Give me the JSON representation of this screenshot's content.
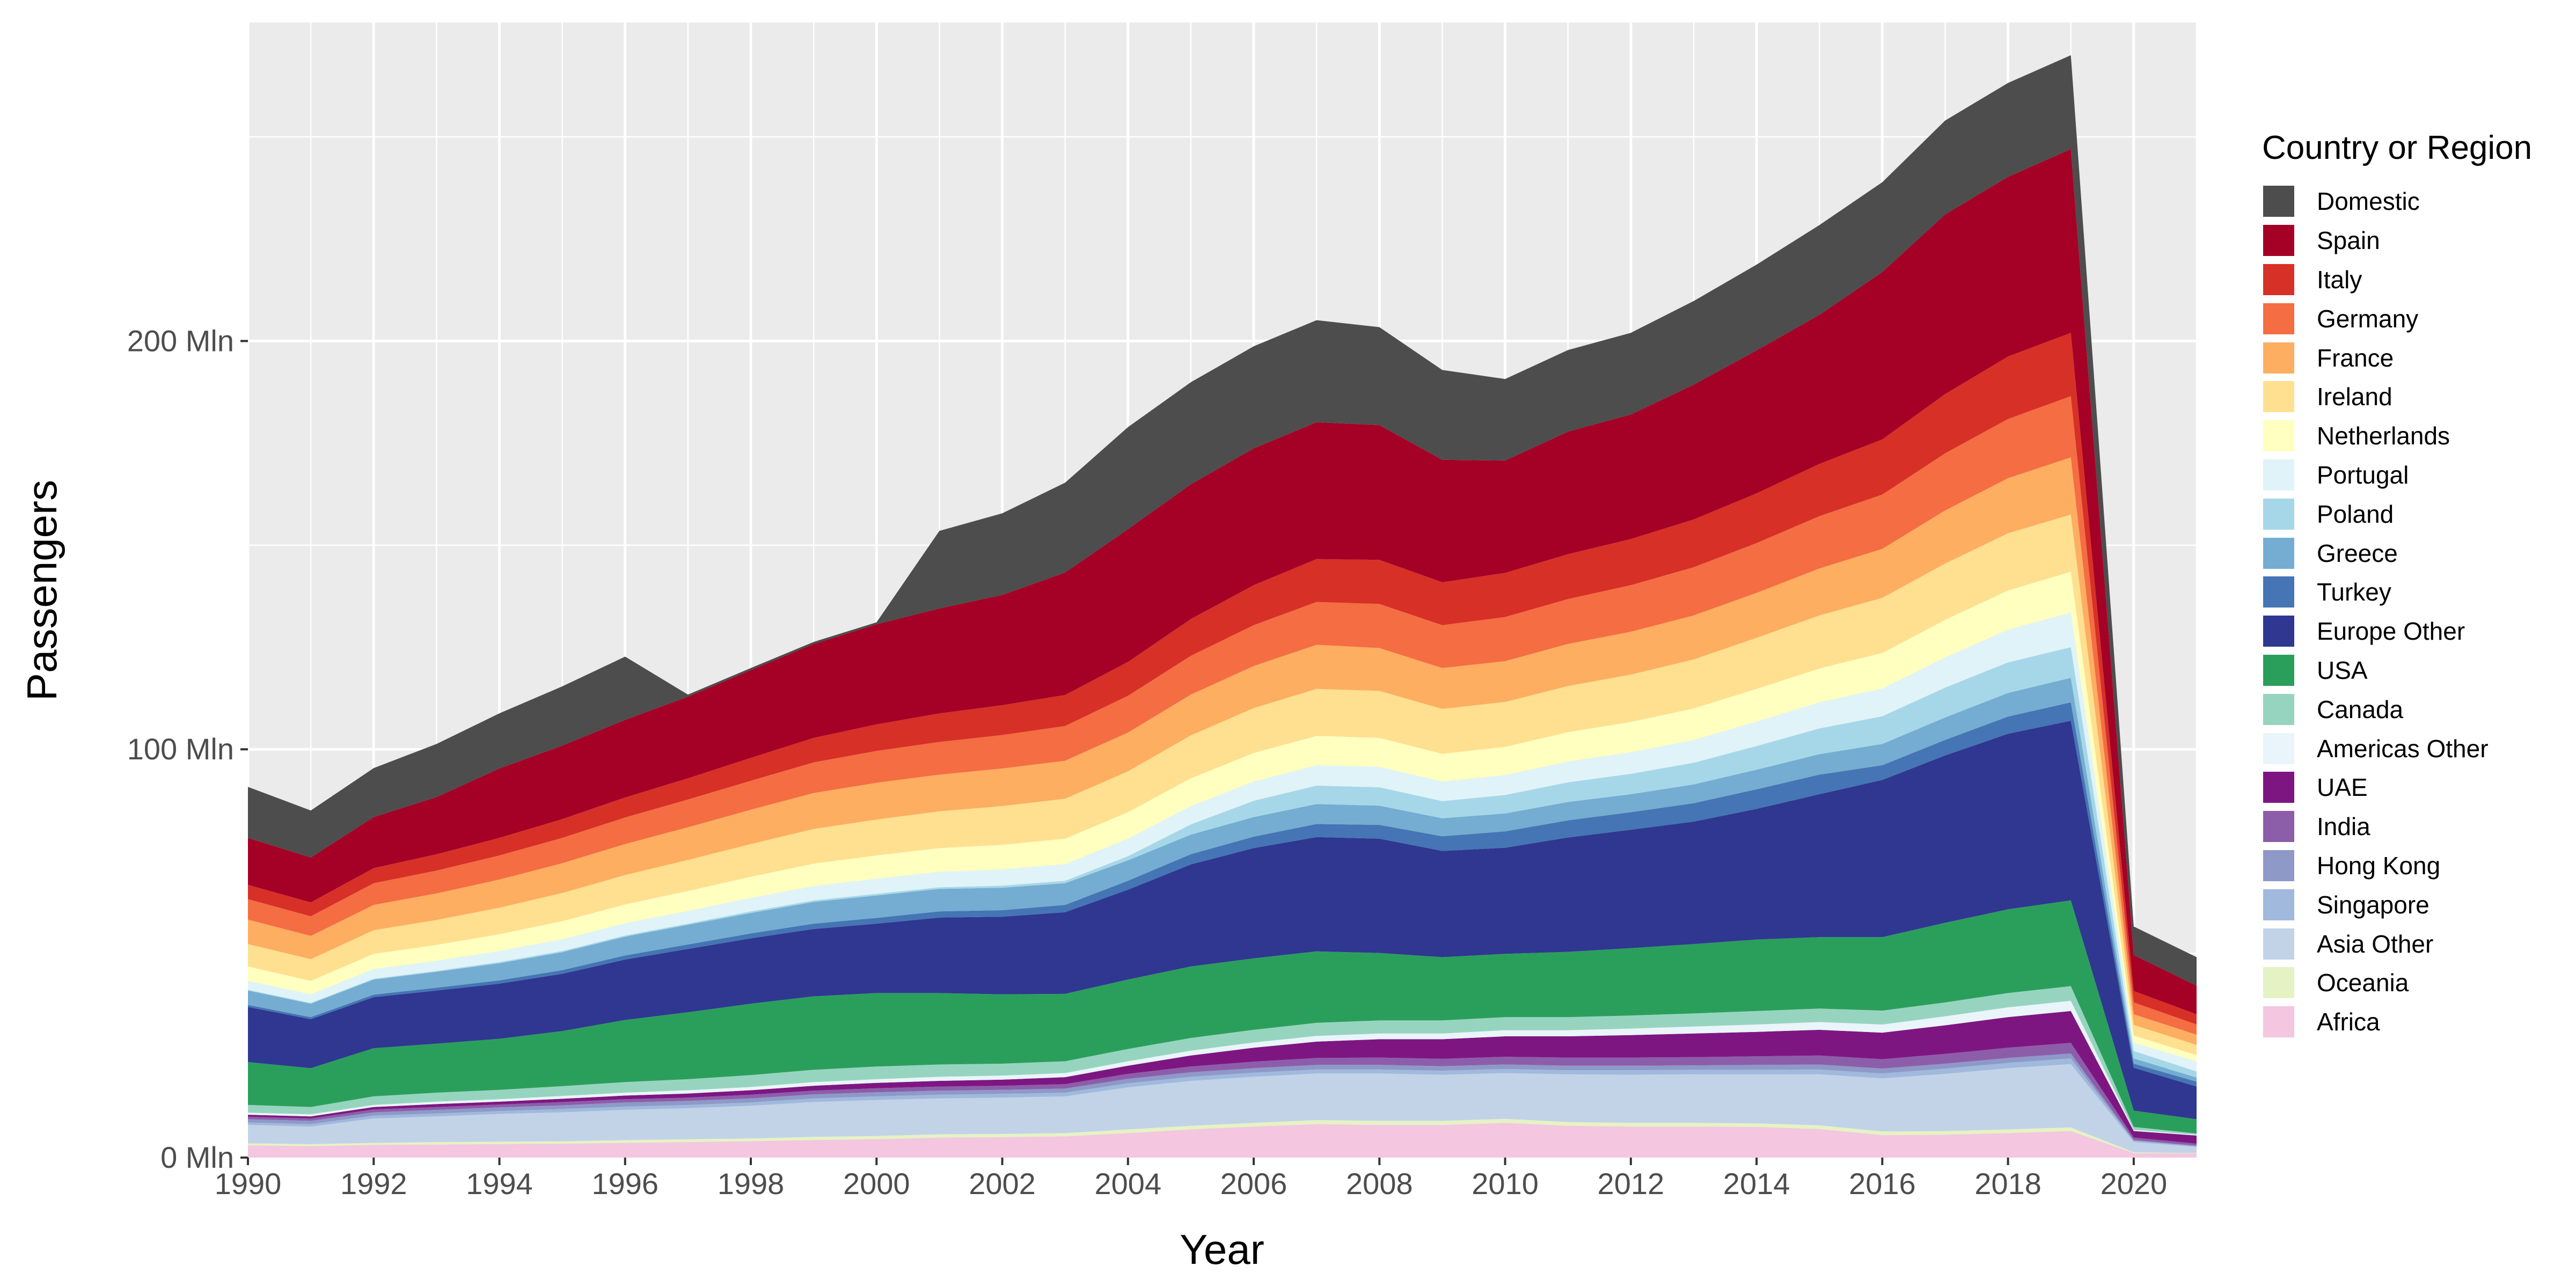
{
  "chart_data": {
    "type": "area",
    "stacked": true,
    "xlabel": "Year",
    "ylabel": "Passengers",
    "xlim": [
      1990,
      2021
    ],
    "ylim": [
      0,
      278
    ],
    "x_ticks": [
      1990,
      1992,
      1994,
      1996,
      1998,
      2000,
      2002,
      2004,
      2006,
      2008,
      2010,
      2012,
      2014,
      2016,
      2018,
      2020
    ],
    "y_ticks": [
      {
        "value": 0,
        "label": "0 Mln"
      },
      {
        "value": 100,
        "label": "100 Mln"
      },
      {
        "value": 200,
        "label": "200 Mln"
      }
    ],
    "grid": true,
    "legend_title": "Country or Region",
    "legend_position": "right",
    "x": [
      1990,
      1991,
      1992,
      1993,
      1994,
      1995,
      1996,
      1997,
      1998,
      1999,
      2000,
      2001,
      2002,
      2003,
      2004,
      2005,
      2006,
      2007,
      2008,
      2009,
      2010,
      2011,
      2012,
      2013,
      2014,
      2015,
      2016,
      2017,
      2018,
      2019,
      2020,
      2021
    ],
    "series_stack_order": "bottom-to-top",
    "series": [
      {
        "name": "Africa",
        "color": "#F4C6DF",
        "values": [
          3.0,
          2.8,
          3.1,
          3.2,
          3.3,
          3.4,
          3.6,
          3.8,
          4.0,
          4.3,
          4.5,
          4.9,
          5.0,
          5.2,
          6.0,
          6.9,
          7.6,
          8.2,
          8.0,
          8.0,
          8.5,
          7.8,
          7.6,
          7.6,
          7.5,
          7.0,
          5.5,
          5.6,
          6.0,
          6.5,
          1.1,
          1.0
        ]
      },
      {
        "name": "Oceania",
        "color": "#E5F3C4",
        "values": [
          0.5,
          0.5,
          0.5,
          0.6,
          0.6,
          0.6,
          0.7,
          0.7,
          0.7,
          0.8,
          0.8,
          0.8,
          0.8,
          0.8,
          0.9,
          0.9,
          0.9,
          1.0,
          1.0,
          1.0,
          1.0,
          0.9,
          0.9,
          0.9,
          0.9,
          0.9,
          0.9,
          0.9,
          0.9,
          0.9,
          0.2,
          0.1
        ]
      },
      {
        "name": "Asia Other",
        "color": "#C2D3E8",
        "values": [
          4.5,
          4.3,
          6.0,
          6.3,
          6.8,
          7.1,
          7.4,
          7.6,
          8.0,
          8.5,
          8.8,
          8.8,
          8.9,
          9.0,
          10.3,
          11.0,
          11.3,
          11.4,
          11.6,
          11.3,
          11.2,
          11.7,
          11.8,
          11.9,
          12.0,
          12.5,
          13.0,
          14.0,
          15.0,
          15.5,
          2.5,
          1.5
        ]
      },
      {
        "name": "Singapore",
        "color": "#A0B9DD",
        "values": [
          0.6,
          0.6,
          0.7,
          0.7,
          0.7,
          0.8,
          0.8,
          0.8,
          0.8,
          0.9,
          0.9,
          0.9,
          0.9,
          0.9,
          1.0,
          1.0,
          1.0,
          1.0,
          1.0,
          1.0,
          1.0,
          1.0,
          1.1,
          1.1,
          1.1,
          1.2,
          1.2,
          1.3,
          1.3,
          1.4,
          0.3,
          0.2
        ]
      },
      {
        "name": "Hong Kong",
        "color": "#8E99C8",
        "values": [
          0.8,
          0.8,
          0.8,
          0.9,
          0.9,
          0.9,
          1.0,
          1.0,
          1.0,
          1.0,
          1.0,
          1.0,
          1.0,
          1.0,
          1.1,
          1.1,
          1.1,
          1.1,
          1.1,
          1.1,
          1.1,
          1.1,
          1.1,
          1.1,
          1.2,
          1.2,
          1.2,
          1.2,
          1.2,
          1.2,
          0.2,
          0.1
        ]
      },
      {
        "name": "India",
        "color": "#8C5EAA",
        "values": [
          0.6,
          0.6,
          0.7,
          0.7,
          0.7,
          0.8,
          0.8,
          0.8,
          0.9,
          0.9,
          1.0,
          1.0,
          1.0,
          1.1,
          1.2,
          1.4,
          1.6,
          1.7,
          1.8,
          1.8,
          1.9,
          2.0,
          2.0,
          2.0,
          2.1,
          2.2,
          2.3,
          2.4,
          2.5,
          2.6,
          0.6,
          0.5
        ]
      },
      {
        "name": "UAE",
        "color": "#7E1682",
        "values": [
          0.5,
          0.5,
          0.6,
          0.7,
          0.7,
          0.8,
          0.9,
          1.0,
          1.1,
          1.2,
          1.3,
          1.4,
          1.5,
          1.7,
          2.0,
          2.7,
          3.4,
          4.0,
          4.5,
          4.8,
          5.0,
          5.2,
          5.5,
          5.8,
          6.0,
          6.3,
          6.5,
          7.0,
          7.5,
          7.8,
          1.6,
          2.0
        ]
      },
      {
        "name": "Americas Other",
        "color": "#E9F5FA",
        "values": [
          0.5,
          0.5,
          0.5,
          0.6,
          0.6,
          0.7,
          0.7,
          0.8,
          0.8,
          0.9,
          0.9,
          1.0,
          1.0,
          1.0,
          1.1,
          1.2,
          1.3,
          1.4,
          1.4,
          1.4,
          1.5,
          1.5,
          1.6,
          1.7,
          1.8,
          1.9,
          2.0,
          2.2,
          2.4,
          2.5,
          0.3,
          0.2
        ]
      },
      {
        "name": "Canada",
        "color": "#97D4BF",
        "values": [
          1.9,
          1.8,
          2.1,
          2.2,
          2.3,
          2.4,
          2.6,
          2.7,
          2.9,
          3.0,
          3.1,
          3.0,
          2.9,
          2.9,
          3.0,
          3.1,
          3.1,
          3.2,
          3.2,
          3.2,
          3.2,
          3.2,
          3.2,
          3.2,
          3.3,
          3.3,
          3.4,
          3.4,
          3.5,
          3.6,
          0.7,
          0.3
        ]
      },
      {
        "name": "USA",
        "color": "#2A9F5C",
        "values": [
          10.5,
          9.5,
          11.8,
          12.0,
          12.5,
          13.5,
          15.2,
          16.4,
          17.5,
          18.0,
          18.0,
          17.5,
          17.0,
          16.5,
          17.0,
          17.5,
          17.5,
          17.5,
          16.5,
          15.5,
          15.5,
          16.0,
          16.5,
          17.0,
          17.5,
          17.5,
          18.0,
          19.5,
          20.5,
          21.0,
          4.0,
          3.5
        ]
      },
      {
        "name": "Europe Other",
        "color": "#2F3790",
        "values": [
          13.5,
          12.0,
          12.5,
          13.0,
          13.5,
          14.0,
          14.8,
          15.5,
          16.0,
          16.5,
          17.0,
          18.5,
          19.0,
          20.0,
          22.0,
          25.0,
          27.0,
          28.0,
          28.0,
          26.0,
          26.0,
          28.0,
          29.0,
          30.0,
          32.0,
          35.0,
          38.5,
          41.0,
          43.0,
          44.0,
          10.5,
          8.0
        ]
      },
      {
        "name": "Turkey",
        "color": "#4575B4",
        "values": [
          0.5,
          0.5,
          0.6,
          0.7,
          0.8,
          0.9,
          1.0,
          1.1,
          1.2,
          1.3,
          1.4,
          1.5,
          1.6,
          1.8,
          2.2,
          2.5,
          2.8,
          3.2,
          3.4,
          3.6,
          4.0,
          4.2,
          4.3,
          4.5,
          4.8,
          4.8,
          3.6,
          3.8,
          4.2,
          4.5,
          1.0,
          1.2
        ]
      },
      {
        "name": "Greece",
        "color": "#74ADD1",
        "values": [
          3.5,
          3.3,
          3.7,
          3.9,
          4.2,
          4.4,
          4.6,
          4.8,
          5.0,
          5.3,
          5.5,
          5.5,
          5.5,
          5.3,
          5.0,
          4.8,
          4.8,
          4.9,
          4.7,
          4.4,
          4.4,
          4.5,
          4.4,
          4.6,
          4.8,
          5.0,
          5.2,
          5.5,
          5.8,
          6.0,
          1.3,
          1.0
        ]
      },
      {
        "name": "Poland",
        "color": "#A6D7E8",
        "values": [
          0.2,
          0.2,
          0.2,
          0.2,
          0.3,
          0.3,
          0.3,
          0.3,
          0.4,
          0.4,
          0.4,
          0.4,
          0.5,
          0.6,
          1.0,
          2.5,
          4.0,
          4.5,
          4.5,
          4.2,
          4.5,
          4.8,
          5.0,
          5.3,
          5.8,
          6.3,
          6.8,
          7.3,
          7.5,
          7.5,
          1.8,
          1.5
        ]
      },
      {
        "name": "Portugal",
        "color": "#E0F3F8",
        "values": [
          2.2,
          2.1,
          2.4,
          2.5,
          2.7,
          2.9,
          3.0,
          3.1,
          3.3,
          3.5,
          3.7,
          3.8,
          4.0,
          4.1,
          4.3,
          4.5,
          4.7,
          5.0,
          5.0,
          4.8,
          4.9,
          5.1,
          5.3,
          5.6,
          6.0,
          6.4,
          6.8,
          7.4,
          8.0,
          8.5,
          2.0,
          2.5
        ]
      },
      {
        "name": "Netherlands",
        "color": "#FFFFBF",
        "values": [
          3.5,
          3.3,
          3.7,
          3.9,
          4.1,
          4.4,
          4.6,
          4.9,
          5.2,
          5.5,
          5.7,
          5.8,
          6.0,
          6.2,
          6.5,
          6.8,
          7.0,
          7.2,
          7.1,
          6.8,
          6.9,
          7.2,
          7.4,
          7.7,
          8.0,
          8.3,
          8.7,
          9.2,
          9.6,
          10.0,
          1.8,
          1.5
        ]
      },
      {
        "name": "Ireland",
        "color": "#FEE090",
        "values": [
          5.5,
          5.3,
          5.8,
          6.1,
          6.5,
          6.9,
          7.2,
          7.6,
          8.0,
          8.5,
          8.8,
          9.0,
          9.5,
          9.8,
          10.0,
          10.5,
          11.0,
          11.5,
          11.5,
          11.0,
          11.0,
          11.3,
          11.6,
          12.0,
          12.5,
          13.0,
          13.5,
          13.8,
          14.0,
          14.0,
          2.6,
          2.5
        ]
      },
      {
        "name": "France",
        "color": "#FDAE61",
        "values": [
          6.0,
          5.7,
          6.2,
          6.5,
          6.9,
          7.3,
          7.6,
          8.0,
          8.4,
          8.8,
          9.0,
          9.0,
          9.2,
          9.3,
          9.5,
          10.0,
          10.3,
          10.8,
          10.5,
          10.0,
          10.0,
          10.3,
          10.5,
          10.8,
          11.0,
          11.5,
          12.0,
          13.0,
          13.5,
          14.0,
          2.6,
          2.5
        ]
      },
      {
        "name": "Germany",
        "color": "#F46D43",
        "values": [
          5.0,
          4.8,
          5.3,
          5.6,
          5.9,
          6.2,
          6.5,
          6.8,
          7.1,
          7.5,
          7.8,
          8.0,
          8.2,
          8.5,
          9.0,
          9.5,
          10.0,
          10.5,
          10.8,
          10.5,
          10.8,
          11.0,
          11.4,
          11.8,
          12.2,
          12.8,
          13.3,
          14.0,
          14.5,
          15.0,
          2.9,
          2.5
        ]
      },
      {
        "name": "Italy",
        "color": "#D73027",
        "values": [
          3.5,
          3.4,
          3.7,
          4.0,
          4.3,
          4.6,
          4.9,
          5.2,
          5.6,
          6.0,
          6.5,
          7.0,
          7.3,
          7.6,
          8.3,
          9.0,
          9.8,
          10.5,
          10.8,
          10.5,
          10.8,
          11.0,
          11.3,
          11.7,
          12.2,
          12.8,
          13.5,
          14.5,
          15.3,
          15.5,
          2.8,
          2.5
        ]
      },
      {
        "name": "Spain",
        "color": "#A50026",
        "values": [
          11.5,
          11.0,
          12.5,
          14.0,
          17.0,
          18.0,
          19.0,
          20.0,
          21.5,
          23.0,
          24.5,
          25.7,
          27.0,
          30.0,
          32.5,
          33.0,
          33.5,
          33.5,
          33.0,
          30.0,
          27.5,
          30.0,
          30.5,
          33.0,
          35.0,
          36.5,
          41.0,
          44.0,
          44.0,
          45.0,
          8.8,
          7.0
        ]
      },
      {
        "name": "Domestic",
        "color": "#4D4D4D",
        "values": [
          12.5,
          11.5,
          12.0,
          13.0,
          13.5,
          14.5,
          15.5,
          0.5,
          0.5,
          0.5,
          0.5,
          19.0,
          20.0,
          22.0,
          25.0,
          25.0,
          25.0,
          25.0,
          24.0,
          22.0,
          20.0,
          20.0,
          20.0,
          20.5,
          21.0,
          22.0,
          22.0,
          23.0,
          23.0,
          23.0,
          7.0,
          7.0
        ]
      }
    ]
  }
}
